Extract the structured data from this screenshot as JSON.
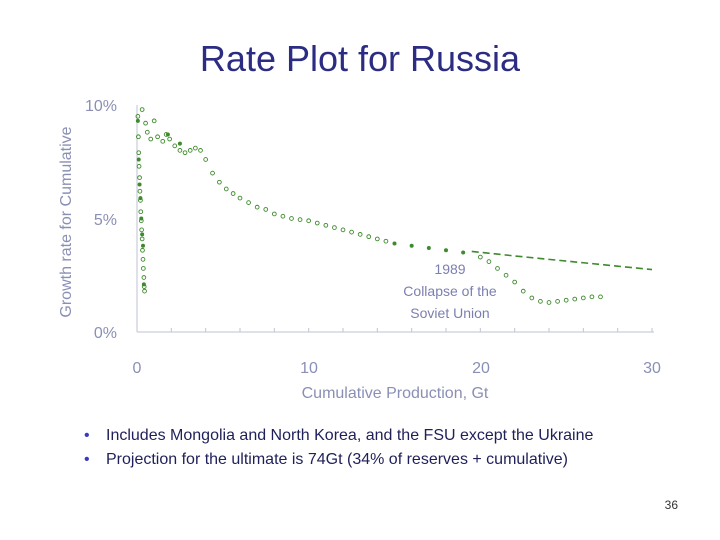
{
  "slide": {
    "title": "Rate Plot for Russia",
    "bullets": [
      "Includes Mongolia and North Korea, and the FSU except the Ukraine",
      "Projection for the ultimate is 74Gt (34% of reserves + cumulative)"
    ],
    "page_number": "36"
  },
  "colors": {
    "title": "#2b2c82",
    "axis_text": "#8a8fb5",
    "series": "#3e8a2c",
    "annotation": "#7b7fb0"
  },
  "chart_data": {
    "type": "scatter",
    "xlabel": "Cumulative Production, Gt",
    "ylabel": "Growth rate for Cumulative",
    "xlim": [
      0,
      30
    ],
    "ylim": [
      0,
      10
    ],
    "xticks": [
      "0",
      "10",
      "20",
      "30"
    ],
    "yticks": [
      "0%",
      "5%",
      "10%"
    ],
    "grid": false,
    "annotation": [
      "1989",
      "Collapse of the",
      "Soviet Union"
    ],
    "series": [
      {
        "marker": "open-circle",
        "points": [
          [
            0.05,
            9.5
          ],
          [
            0.08,
            8.6
          ],
          [
            0.1,
            7.9
          ],
          [
            0.12,
            7.3
          ],
          [
            0.15,
            6.8
          ],
          [
            0.17,
            6.2
          ],
          [
            0.2,
            5.8
          ],
          [
            0.22,
            5.3
          ],
          [
            0.25,
            4.9
          ],
          [
            0.27,
            4.5
          ],
          [
            0.3,
            4.1
          ],
          [
            0.32,
            3.6
          ],
          [
            0.35,
            3.2
          ],
          [
            0.37,
            2.8
          ],
          [
            0.4,
            2.4
          ],
          [
            0.42,
            2.0
          ],
          [
            0.44,
            1.8
          ],
          [
            0.3,
            9.8
          ],
          [
            0.5,
            9.2
          ],
          [
            0.6,
            8.8
          ],
          [
            0.8,
            8.5
          ],
          [
            1.0,
            9.3
          ],
          [
            1.2,
            8.6
          ],
          [
            1.5,
            8.4
          ],
          [
            1.7,
            8.7
          ],
          [
            1.9,
            8.5
          ],
          [
            2.2,
            8.2
          ],
          [
            2.5,
            8.0
          ],
          [
            2.8,
            7.9
          ],
          [
            3.1,
            8.0
          ],
          [
            3.4,
            8.1
          ],
          [
            3.7,
            8.0
          ],
          [
            4.0,
            7.6
          ],
          [
            4.4,
            7.0
          ],
          [
            4.8,
            6.6
          ],
          [
            5.2,
            6.3
          ],
          [
            5.6,
            6.1
          ],
          [
            6.0,
            5.9
          ],
          [
            6.5,
            5.7
          ],
          [
            7.0,
            5.5
          ],
          [
            7.5,
            5.4
          ],
          [
            8.0,
            5.2
          ],
          [
            8.5,
            5.1
          ],
          [
            9.0,
            5.0
          ],
          [
            9.5,
            4.95
          ],
          [
            10.0,
            4.9
          ],
          [
            10.5,
            4.8
          ],
          [
            11.0,
            4.7
          ],
          [
            11.5,
            4.6
          ],
          [
            12.0,
            4.5
          ],
          [
            12.5,
            4.4
          ],
          [
            13.0,
            4.3
          ],
          [
            13.5,
            4.2
          ],
          [
            14.0,
            4.1
          ],
          [
            14.5,
            4.0
          ],
          [
            20.0,
            3.3
          ],
          [
            20.5,
            3.1
          ],
          [
            21.0,
            2.8
          ],
          [
            21.5,
            2.5
          ],
          [
            22.0,
            2.2
          ],
          [
            22.5,
            1.8
          ],
          [
            23.0,
            1.5
          ],
          [
            23.5,
            1.35
          ],
          [
            24.0,
            1.3
          ],
          [
            24.5,
            1.35
          ],
          [
            25.0,
            1.4
          ],
          [
            25.5,
            1.45
          ],
          [
            26.0,
            1.5
          ],
          [
            26.5,
            1.55
          ],
          [
            27.0,
            1.55
          ]
        ]
      },
      {
        "marker": "filled-dot",
        "points": [
          [
            0.05,
            9.3
          ],
          [
            0.1,
            7.6
          ],
          [
            0.15,
            6.5
          ],
          [
            0.2,
            5.9
          ],
          [
            0.25,
            5.0
          ],
          [
            0.3,
            4.3
          ],
          [
            0.35,
            3.8
          ],
          [
            0.4,
            2.1
          ],
          [
            1.8,
            8.7
          ],
          [
            2.5,
            8.3
          ],
          [
            15.0,
            3.9
          ],
          [
            16.0,
            3.8
          ],
          [
            17.0,
            3.7
          ],
          [
            18.0,
            3.6
          ],
          [
            19.0,
            3.5
          ]
        ]
      },
      {
        "style": "dashed-line",
        "points": [
          [
            19.5,
            3.55
          ],
          [
            22.0,
            3.35
          ],
          [
            24.0,
            3.2
          ],
          [
            26.0,
            3.05
          ],
          [
            28.0,
            2.9
          ],
          [
            30.0,
            2.75
          ]
        ]
      }
    ]
  }
}
